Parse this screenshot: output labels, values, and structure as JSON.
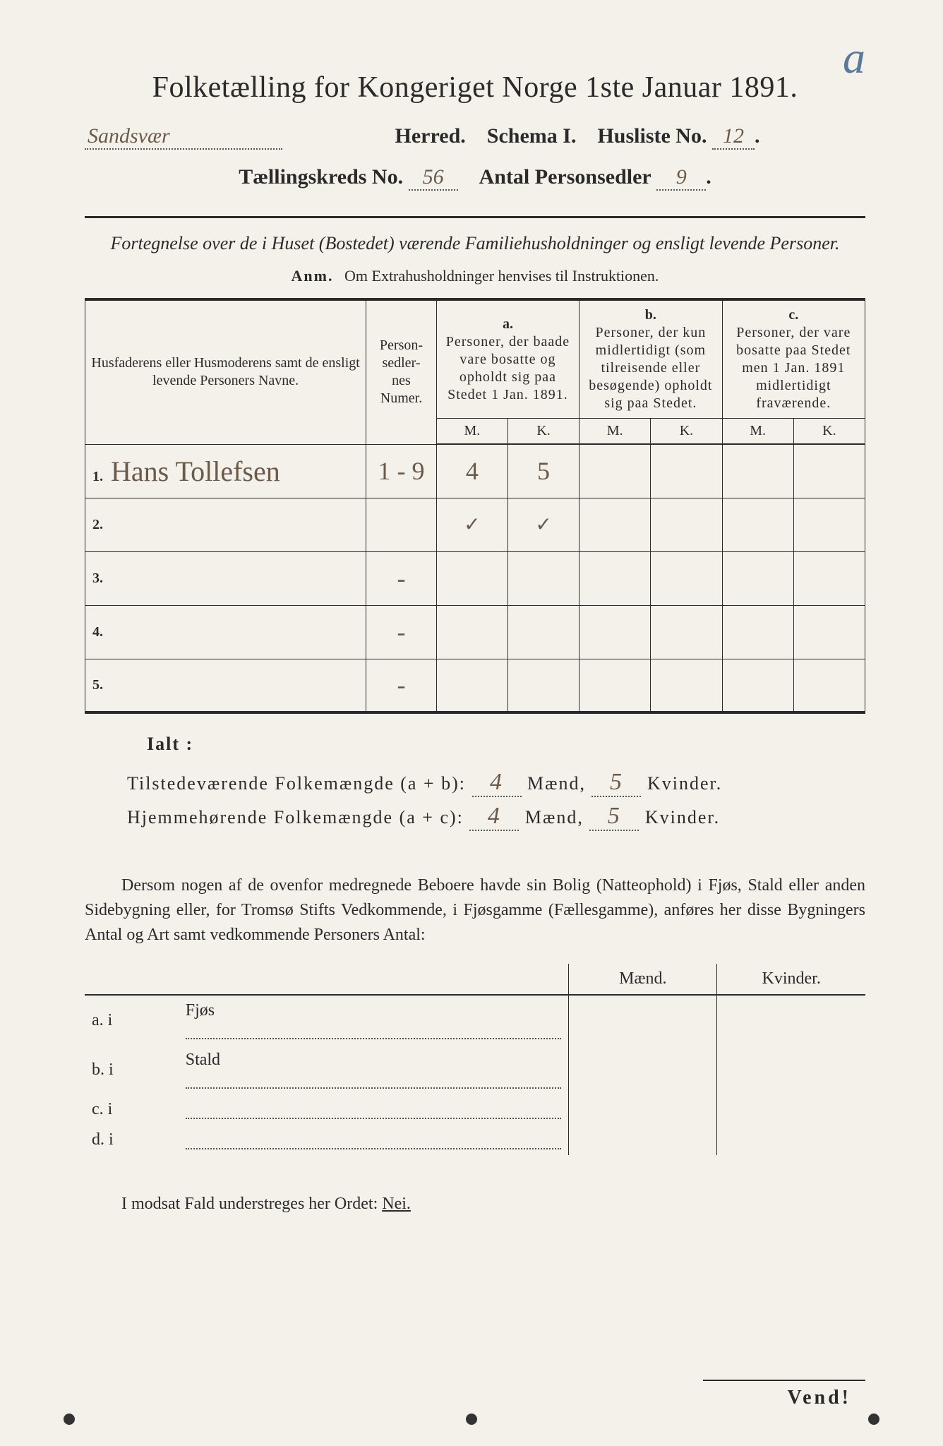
{
  "corner_mark": "a",
  "title": "Folketælling for Kongeriget Norge 1ste Januar 1891.",
  "line2": {
    "herred_hw": "Sandsvær",
    "herred_label": "Herred.",
    "schema_label": "Schema I.",
    "husliste_label": "Husliste No.",
    "husliste_no": "12",
    "end": "."
  },
  "line3": {
    "kreds_label": "Tællingskreds No.",
    "kreds_no": "56",
    "sedler_label": "Antal Personsedler",
    "sedler_no": "9",
    "end": "."
  },
  "subtitle": "Fortegnelse over de i Huset (Bostedet) værende Familiehusholdninger og ensligt levende Personer.",
  "anm_prefix": "Anm.",
  "anm_text": "Om Extrahusholdninger henvises til Instruktionen.",
  "table": {
    "col_name": "Husfaderens eller Husmoderens samt de ensligt levende Personers Navne.",
    "col_num": "Person-\nsedler-\nnes\nNumer.",
    "col_a_top": "a.",
    "col_a": "Personer, der baade vare bosatte og opholdt sig paa Stedet 1 Jan. 1891.",
    "col_b_top": "b.",
    "col_b": "Personer, der kun midlertidigt (som tilreisende eller besøgende) opholdt sig paa Stedet.",
    "col_c_top": "c.",
    "col_c": "Personer, der vare bosatte paa Stedet men 1 Jan. 1891 midlertidigt fraværende.",
    "M": "M.",
    "K": "K.",
    "rows": [
      {
        "n": "1.",
        "name": "Hans Tollefsen",
        "num": "1 - 9",
        "aM": "4",
        "aK": "5",
        "bM": "",
        "bK": "",
        "cM": "",
        "cK": ""
      },
      {
        "n": "2.",
        "name": "",
        "num": "",
        "aM": "✓",
        "aK": "✓",
        "bM": "",
        "bK": "",
        "cM": "",
        "cK": ""
      },
      {
        "n": "3.",
        "name": "",
        "num": "-",
        "aM": "",
        "aK": "",
        "bM": "",
        "bK": "",
        "cM": "",
        "cK": ""
      },
      {
        "n": "4.",
        "name": "",
        "num": "-",
        "aM": "",
        "aK": "",
        "bM": "",
        "bK": "",
        "cM": "",
        "cK": ""
      },
      {
        "n": "5.",
        "name": "",
        "num": "-",
        "aM": "",
        "aK": "",
        "bM": "",
        "bK": "",
        "cM": "",
        "cK": ""
      }
    ]
  },
  "ialt": "Ialt :",
  "sum1": {
    "label": "Tilstedeværende Folkemængde (a + b):",
    "maend": "4",
    "maend_label": "Mænd,",
    "kvinder": "5",
    "kvinder_label": "Kvinder."
  },
  "sum2": {
    "label": "Hjemmehørende Folkemængde (a + c):",
    "maend": "4",
    "maend_label": "Mænd,",
    "kvinder": "5",
    "kvinder_label": "Kvinder."
  },
  "para": "Dersom nogen af de ovenfor medregnede Beboere havde sin Bolig (Natteophold) i Fjøs, Stald eller anden Sidebygning eller, for Tromsø Stifts Vedkommende, i Fjøsgamme (Fællesgamme), anføres her disse Bygningers Antal og Art samt vedkommende Personers Antal:",
  "byg_table": {
    "maend": "Mænd.",
    "kvinder": "Kvinder.",
    "rows": [
      {
        "label": "a.  i",
        "type": "Fjøs"
      },
      {
        "label": "b.  i",
        "type": "Stald"
      },
      {
        "label": "c.  i",
        "type": ""
      },
      {
        "label": "d.  i",
        "type": ""
      }
    ]
  },
  "footer": "I modsat Fald understreges her Ordet:",
  "nei": "Nei.",
  "vend": "Vend!"
}
